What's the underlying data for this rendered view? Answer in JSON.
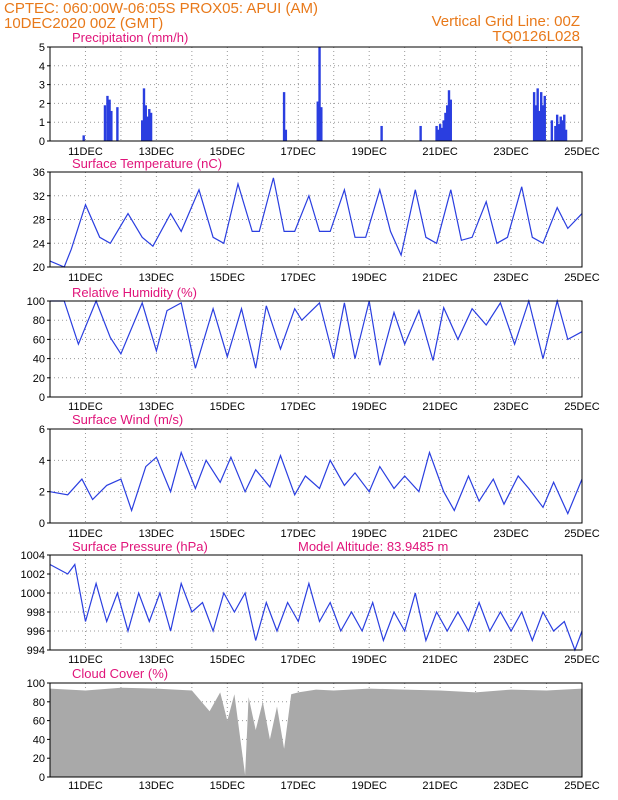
{
  "header": {
    "left_line1": "CPTEC:   060:00W-06:05S   PROX05: APUI (AM)",
    "left_line2": "10DEC2020 00Z (GMT)",
    "right_line1": "Vertical Grid Line: 00Z",
    "right_line2": "TQ0126L028"
  },
  "x_axis": {
    "tick_labels": [
      "11DEC",
      "13DEC",
      "15DEC",
      "17DEC",
      "19DEC",
      "21DEC",
      "23DEC",
      "25DEC"
    ],
    "tick_days": [
      1,
      3,
      5,
      7,
      9,
      11,
      13,
      15
    ],
    "range_days": [
      0,
      15
    ]
  },
  "colors": {
    "line": "#2a3ee0",
    "cloud": "#a9a9a9",
    "title": "#e0147a",
    "header": "#e8791a"
  },
  "chart_data": [
    {
      "type": "bar",
      "title": "Precipitation (mm/h)",
      "ylim": [
        0,
        5
      ],
      "yticks": [
        0,
        1,
        2,
        3,
        4,
        5
      ],
      "x_days": [
        0.95,
        1.55,
        1.62,
        1.68,
        1.73,
        1.9,
        2.6,
        2.65,
        2.7,
        2.75,
        2.8,
        2.85,
        6.6,
        6.65,
        7.55,
        7.6,
        7.65,
        9.35,
        10.45,
        10.9,
        10.95,
        11.0,
        11.05,
        11.1,
        11.15,
        11.2,
        11.25,
        11.3,
        13.65,
        13.7,
        13.75,
        13.8,
        13.85,
        13.9,
        13.95,
        14.15,
        14.25,
        14.3,
        14.35,
        14.4,
        14.45,
        14.5,
        14.55
      ],
      "values": [
        0.3,
        1.9,
        2.4,
        2.2,
        1.6,
        1.8,
        1.1,
        2.8,
        1.9,
        1.3,
        1.7,
        1.5,
        2.6,
        0.6,
        2.1,
        5.0,
        1.8,
        0.8,
        0.8,
        0.8,
        0.6,
        0.9,
        0.7,
        1.1,
        1.5,
        1.9,
        2.7,
        2.2,
        2.6,
        1.9,
        2.8,
        1.6,
        2.6,
        1.9,
        2.4,
        1.1,
        0.8,
        1.4,
        0.9,
        1.3,
        1.1,
        1.4,
        0.6
      ]
    },
    {
      "type": "line",
      "title": "Surface Temperature (nC)",
      "ylim": [
        20,
        36
      ],
      "yticks": [
        20,
        24,
        28,
        32,
        36
      ],
      "x_days": [
        0,
        0.4,
        0.6,
        1.0,
        1.4,
        1.7,
        2.2,
        2.6,
        2.9,
        3.4,
        3.7,
        4.2,
        4.6,
        4.9,
        5.3,
        5.7,
        5.9,
        6.3,
        6.6,
        6.9,
        7.3,
        7.6,
        7.9,
        8.3,
        8.6,
        8.9,
        9.3,
        9.6,
        9.9,
        10.3,
        10.6,
        10.9,
        11.3,
        11.6,
        11.9,
        12.3,
        12.6,
        12.9,
        13.3,
        13.6,
        13.9,
        14.3,
        14.6,
        15.0
      ],
      "values": [
        21,
        20,
        23,
        30.5,
        25,
        24,
        29,
        25,
        23.5,
        29,
        26,
        33,
        25,
        24,
        34,
        26,
        26,
        35,
        26,
        26,
        32,
        26,
        26,
        33,
        25,
        25,
        33,
        26,
        22,
        33,
        25,
        24,
        33,
        24.5,
        25,
        31,
        24,
        25,
        33.5,
        25,
        24,
        30,
        26.5,
        29
      ]
    },
    {
      "type": "line",
      "title": "Relative Humidity (%)",
      "ylim": [
        0,
        100
      ],
      "yticks": [
        0,
        20,
        40,
        60,
        80,
        100
      ],
      "x_days": [
        0,
        0.4,
        0.8,
        1.3,
        1.7,
        2.0,
        2.6,
        3.0,
        3.3,
        3.7,
        4.1,
        4.6,
        5.0,
        5.4,
        5.8,
        6.1,
        6.5,
        6.9,
        7.1,
        7.6,
        8.0,
        8.3,
        8.6,
        9.0,
        9.3,
        9.7,
        10.0,
        10.4,
        10.8,
        11.1,
        11.5,
        11.9,
        12.3,
        12.7,
        13.1,
        13.5,
        13.9,
        14.3,
        14.6,
        15.0
      ],
      "values": [
        100,
        100,
        55,
        100,
        62,
        45,
        98,
        48,
        90,
        98,
        30,
        92,
        42,
        92,
        30,
        95,
        50,
        92,
        80,
        98,
        40,
        98,
        40,
        100,
        33,
        88,
        55,
        90,
        38,
        93,
        60,
        92,
        75,
        98,
        55,
        100,
        40,
        100,
        60,
        68
      ]
    },
    {
      "type": "line",
      "title": "Surface Wind (m/s)",
      "ylim": [
        0,
        6
      ],
      "yticks": [
        0,
        2,
        4,
        6
      ],
      "x_days": [
        0,
        0.5,
        0.9,
        1.2,
        1.6,
        2.0,
        2.3,
        2.7,
        3.0,
        3.4,
        3.7,
        4.1,
        4.4,
        4.8,
        5.1,
        5.5,
        5.8,
        6.2,
        6.5,
        6.9,
        7.2,
        7.6,
        7.9,
        8.3,
        8.6,
        9.0,
        9.3,
        9.7,
        10.0,
        10.4,
        10.7,
        11.1,
        11.4,
        11.8,
        12.1,
        12.5,
        12.8,
        13.2,
        13.5,
        13.9,
        14.2,
        14.6,
        15.0
      ],
      "values": [
        2.0,
        1.8,
        2.8,
        1.5,
        2.4,
        2.8,
        0.8,
        3.6,
        4.2,
        2.0,
        4.5,
        2.2,
        4.0,
        2.6,
        4.2,
        2.0,
        3.4,
        2.3,
        4.3,
        1.8,
        3.0,
        2.2,
        4.0,
        2.4,
        3.2,
        2.0,
        3.6,
        2.2,
        3.0,
        2.0,
        4.5,
        2.0,
        0.8,
        3.0,
        1.4,
        2.8,
        1.2,
        3.0,
        2.2,
        1.0,
        2.6,
        0.6,
        2.8
      ]
    },
    {
      "type": "line",
      "title": "Surface Pressure (hPa)",
      "annotation": "Model Altitude: 83.9485 m",
      "ylim": [
        994,
        1004
      ],
      "yticks": [
        994,
        996,
        998,
        1000,
        1002,
        1004
      ],
      "x_days": [
        0,
        0.5,
        0.7,
        1.0,
        1.3,
        1.6,
        1.9,
        2.2,
        2.5,
        2.8,
        3.1,
        3.4,
        3.7,
        4.0,
        4.3,
        4.6,
        4.9,
        5.2,
        5.5,
        5.8,
        6.1,
        6.4,
        6.7,
        7.0,
        7.3,
        7.6,
        7.9,
        8.2,
        8.5,
        8.8,
        9.1,
        9.4,
        9.7,
        10.0,
        10.3,
        10.6,
        10.9,
        11.2,
        11.5,
        11.8,
        12.1,
        12.4,
        12.7,
        13.0,
        13.3,
        13.6,
        13.9,
        14.2,
        14.5,
        14.8,
        15.0
      ],
      "values": [
        1003,
        1002,
        1003,
        997,
        1001,
        997,
        1000,
        996,
        1000,
        997,
        1000,
        996,
        1001,
        998,
        999,
        996,
        1000,
        998,
        1000,
        995,
        999,
        996,
        999,
        997,
        1001,
        997,
        999,
        996,
        998,
        996,
        999,
        995,
        998,
        996,
        1000,
        995,
        998,
        996,
        998,
        996,
        999,
        996,
        998,
        996,
        998,
        995,
        998,
        996,
        997,
        994,
        996
      ]
    },
    {
      "type": "area",
      "title": "Cloud Cover (%)",
      "ylim": [
        0,
        100
      ],
      "yticks": [
        0,
        20,
        40,
        60,
        80,
        100
      ],
      "x_days": [
        0,
        1,
        2,
        3,
        4,
        4.5,
        4.8,
        5.0,
        5.2,
        5.5,
        5.6,
        5.8,
        6.0,
        6.2,
        6.4,
        6.6,
        6.8,
        7.0,
        7.5,
        8.0,
        9.0,
        10.0,
        11.0,
        12.0,
        13.0,
        14.0,
        15.0
      ],
      "values": [
        94,
        92,
        95,
        94,
        92,
        70,
        90,
        60,
        88,
        2,
        85,
        50,
        80,
        40,
        75,
        30,
        88,
        90,
        93,
        92,
        94,
        93,
        92,
        90,
        93,
        92,
        94
      ]
    }
  ]
}
